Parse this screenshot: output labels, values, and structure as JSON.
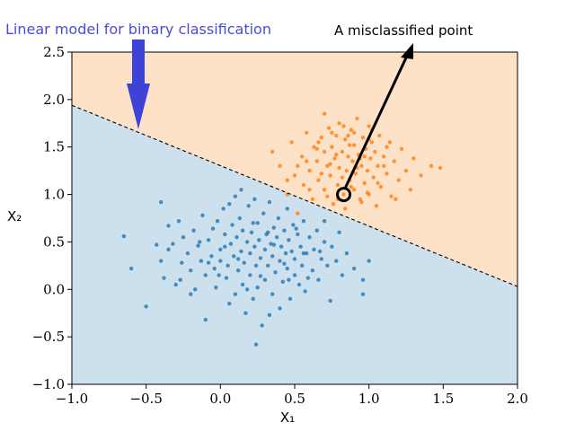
{
  "chart_data": {
    "type": "scatter",
    "title": "",
    "xlabel": "X₁",
    "ylabel": "X₂",
    "xlim": [
      -1.0,
      2.0
    ],
    "ylim": [
      -1.0,
      2.5
    ],
    "xticks": [
      "−1.0",
      "−0.5",
      "0.0",
      "0.5",
      "1.0",
      "1.5",
      "2.0"
    ],
    "yticks": [
      "−1.0",
      "−0.5",
      "0.0",
      "0.5",
      "1.0",
      "1.5",
      "2.0",
      "2.5"
    ],
    "grid": false,
    "decision_boundary": {
      "x": [
        -1.0,
        2.0
      ],
      "y": [
        1.94,
        0.03
      ],
      "style": "dashed"
    },
    "regions": {
      "upper_color": "#fde2c8",
      "lower_color": "#cde0ee"
    },
    "series": [
      {
        "color": "#1f77b4",
        "points": [
          [
            -0.65,
            0.56
          ],
          [
            -0.6,
            0.22
          ],
          [
            -0.5,
            -0.18
          ],
          [
            -0.43,
            0.47
          ],
          [
            -0.4,
            0.3
          ],
          [
            -0.38,
            0.12
          ],
          [
            -0.35,
            0.67
          ],
          [
            -0.32,
            0.48
          ],
          [
            -0.3,
            0.05
          ],
          [
            -0.28,
            0.72
          ],
          [
            -0.26,
            0.28
          ],
          [
            -0.25,
            0.55
          ],
          [
            -0.22,
            0.38
          ],
          [
            -0.2,
            0.2
          ],
          [
            -0.2,
            -0.05
          ],
          [
            -0.18,
            0.62
          ],
          [
            -0.17,
            0.0
          ],
          [
            -0.15,
            0.46
          ],
          [
            -0.13,
            0.3
          ],
          [
            -0.12,
            0.78
          ],
          [
            -0.1,
            0.15
          ],
          [
            -0.1,
            -0.32
          ],
          [
            -0.08,
            0.52
          ],
          [
            -0.06,
            0.35
          ],
          [
            -0.05,
            0.64
          ],
          [
            -0.04,
            0.22
          ],
          [
            -0.03,
            0.02
          ],
          [
            -0.02,
            0.72
          ],
          [
            0.0,
            0.42
          ],
          [
            0.0,
            0.3
          ],
          [
            0.02,
            0.85
          ],
          [
            0.03,
            0.58
          ],
          [
            0.04,
            0.12
          ],
          [
            0.05,
            0.25
          ],
          [
            0.06,
            -0.15
          ],
          [
            0.07,
            0.48
          ],
          [
            0.08,
            0.68
          ],
          [
            0.09,
            0.35
          ],
          [
            0.1,
            0.98
          ],
          [
            0.1,
            -0.05
          ],
          [
            0.11,
            0.55
          ],
          [
            0.12,
            0.2
          ],
          [
            0.13,
            0.75
          ],
          [
            0.14,
            0.4
          ],
          [
            0.15,
            0.05
          ],
          [
            0.15,
            0.62
          ],
          [
            0.16,
            0.28
          ],
          [
            0.17,
            -0.25
          ],
          [
            0.18,
            0.5
          ],
          [
            0.19,
            0.88
          ],
          [
            0.2,
            0.15
          ],
          [
            0.2,
            0.38
          ],
          [
            0.21,
            0.6
          ],
          [
            0.22,
            -0.1
          ],
          [
            0.23,
            0.45
          ],
          [
            0.24,
            0.25
          ],
          [
            0.25,
            0.7
          ],
          [
            0.25,
            0.02
          ],
          [
            0.26,
            0.52
          ],
          [
            0.27,
            0.33
          ],
          [
            0.28,
            -0.38
          ],
          [
            0.29,
            0.8
          ],
          [
            0.3,
            0.42
          ],
          [
            0.3,
            0.1
          ],
          [
            0.31,
            0.58
          ],
          [
            0.32,
            0.25
          ],
          [
            0.33,
            0.92
          ],
          [
            0.34,
            0.48
          ],
          [
            0.35,
            -0.05
          ],
          [
            0.35,
            0.35
          ],
          [
            0.36,
            0.65
          ],
          [
            0.37,
            0.18
          ],
          [
            0.38,
            0.55
          ],
          [
            0.39,
            0.75
          ],
          [
            0.4,
            0.3
          ],
          [
            0.4,
            -0.2
          ],
          [
            0.41,
            0.45
          ],
          [
            0.42,
            0.08
          ],
          [
            0.43,
            0.62
          ],
          [
            0.44,
            0.38
          ],
          [
            0.45,
            0.85
          ],
          [
            0.45,
            0.22
          ],
          [
            0.46,
            0.52
          ],
          [
            0.47,
            -0.1
          ],
          [
            0.48,
            0.4
          ],
          [
            0.49,
            0.68
          ],
          [
            0.5,
            0.15
          ],
          [
            0.5,
            0.32
          ],
          [
            0.52,
            0.58
          ],
          [
            0.53,
            0.05
          ],
          [
            0.54,
            0.45
          ],
          [
            0.55,
            0.25
          ],
          [
            0.56,
            0.72
          ],
          [
            0.57,
            -0.02
          ],
          [
            0.58,
            0.38
          ],
          [
            0.6,
            0.55
          ],
          [
            0.62,
            0.2
          ],
          [
            0.63,
            0.42
          ],
          [
            0.65,
            0.62
          ],
          [
            0.66,
            0.1
          ],
          [
            0.68,
            0.32
          ],
          [
            0.7,
            0.5
          ],
          [
            0.72,
            0.25
          ],
          [
            0.74,
            -0.12
          ],
          [
            0.75,
            0.45
          ],
          [
            0.78,
            0.3
          ],
          [
            0.8,
            0.6
          ],
          [
            0.82,
            0.15
          ],
          [
            0.85,
            0.38
          ],
          [
            0.9,
            0.22
          ],
          [
            0.96,
            0.1
          ],
          [
            1.0,
            0.3
          ],
          [
            -0.35,
            0.42
          ],
          [
            -0.27,
            0.1
          ],
          [
            -0.14,
            0.5
          ],
          [
            -0.01,
            0.15
          ],
          [
            0.12,
            0.32
          ],
          [
            0.22,
            0.7
          ],
          [
            0.27,
            0.14
          ],
          [
            0.36,
            0.47
          ],
          [
            0.43,
            0.27
          ],
          [
            0.51,
            0.64
          ],
          [
            0.59,
            0.12
          ],
          [
            0.67,
            0.4
          ],
          [
            0.24,
            -0.58
          ],
          [
            0.33,
            -0.27
          ],
          [
            0.14,
            1.05
          ],
          [
            0.23,
            0.95
          ],
          [
            -0.4,
            0.92
          ],
          [
            0.7,
            0.72
          ],
          [
            0.06,
            0.9
          ],
          [
            0.96,
            -0.05
          ],
          [
            0.32,
            0.6
          ],
          [
            0.18,
            0.0
          ],
          [
            0.46,
            0.1
          ],
          [
            -0.08,
            0.28
          ],
          [
            0.56,
            0.38
          ],
          [
            0.03,
            0.45
          ]
        ]
      },
      {
        "color": "#ff7f0e",
        "points": [
          [
            0.35,
            1.45
          ],
          [
            0.4,
            1.3
          ],
          [
            0.45,
            1.0
          ],
          [
            0.48,
            1.55
          ],
          [
            0.5,
            1.2
          ],
          [
            0.52,
            0.8
          ],
          [
            0.55,
            1.4
          ],
          [
            0.56,
            1.1
          ],
          [
            0.58,
            1.65
          ],
          [
            0.6,
            1.25
          ],
          [
            0.62,
            0.95
          ],
          [
            0.63,
            1.5
          ],
          [
            0.65,
            1.35
          ],
          [
            0.66,
            1.15
          ],
          [
            0.68,
            1.6
          ],
          [
            0.7,
            1.45
          ],
          [
            0.7,
            1.05
          ],
          [
            0.72,
            1.3
          ],
          [
            0.73,
            1.7
          ],
          [
            0.74,
            1.2
          ],
          [
            0.75,
            1.5
          ],
          [
            0.76,
            0.9
          ],
          [
            0.77,
            1.38
          ],
          [
            0.78,
            1.62
          ],
          [
            0.79,
            1.1
          ],
          [
            0.8,
            1.28
          ],
          [
            0.8,
            1.75
          ],
          [
            0.82,
            1.45
          ],
          [
            0.83,
            1.0
          ],
          [
            0.84,
            1.58
          ],
          [
            0.85,
            1.25
          ],
          [
            0.86,
            1.4
          ],
          [
            0.87,
            1.15
          ],
          [
            0.88,
            1.68
          ],
          [
            0.89,
            1.35
          ],
          [
            0.9,
            1.05
          ],
          [
            0.9,
            1.52
          ],
          [
            0.91,
            1.22
          ],
          [
            0.92,
            1.8
          ],
          [
            0.93,
            1.42
          ],
          [
            0.94,
            0.95
          ],
          [
            0.95,
            1.3
          ],
          [
            0.96,
            1.6
          ],
          [
            0.97,
            1.12
          ],
          [
            0.98,
            1.48
          ],
          [
            0.99,
            1.25
          ],
          [
            1.0,
            1.72
          ],
          [
            1.0,
            1.0
          ],
          [
            1.01,
            1.38
          ],
          [
            1.02,
            1.55
          ],
          [
            1.03,
            1.18
          ],
          [
            1.04,
            1.45
          ],
          [
            1.05,
            0.88
          ],
          [
            1.06,
            1.3
          ],
          [
            1.07,
            1.62
          ],
          [
            1.08,
            1.08
          ],
          [
            1.1,
            1.4
          ],
          [
            1.12,
            1.22
          ],
          [
            1.14,
            1.55
          ],
          [
            1.15,
            0.98
          ],
          [
            1.17,
            1.35
          ],
          [
            1.2,
            1.15
          ],
          [
            1.22,
            1.48
          ],
          [
            1.25,
            1.25
          ],
          [
            1.28,
            1.05
          ],
          [
            1.3,
            1.38
          ],
          [
            1.35,
            1.2
          ],
          [
            1.42,
            1.3
          ],
          [
            1.48,
            1.28
          ],
          [
            0.45,
            1.15
          ],
          [
            0.6,
            1.05
          ],
          [
            0.68,
            1.22
          ],
          [
            0.72,
            0.98
          ],
          [
            0.82,
            1.18
          ],
          [
            0.86,
            1.62
          ],
          [
            0.94,
            1.38
          ],
          [
            1.06,
            1.12
          ],
          [
            1.12,
            1.5
          ],
          [
            0.78,
            1.42
          ],
          [
            0.88,
            1.08
          ],
          [
            0.95,
            0.92
          ],
          [
            1.0,
            1.58
          ],
          [
            0.65,
            1.48
          ],
          [
            0.75,
            1.65
          ],
          [
            0.84,
            0.85
          ],
          [
            0.92,
            1.28
          ],
          [
            1.02,
            1.68
          ],
          [
            1.1,
            1.3
          ],
          [
            0.7,
            1.85
          ],
          [
            0.58,
            1.35
          ],
          [
            0.79,
            0.95
          ],
          [
            0.87,
            1.52
          ],
          [
            1.18,
            0.95
          ],
          [
            0.52,
            1.3
          ],
          [
            0.9,
            1.65
          ],
          [
            0.97,
            1.4
          ],
          [
            0.66,
            1.55
          ],
          [
            0.74,
            1.32
          ],
          [
            0.83,
            1.72
          ],
          [
            0.99,
            1.02
          ]
        ]
      }
    ],
    "annotations": {
      "title_annotation": "Linear model for binary classification",
      "point_annotation": "A misclassified point",
      "misclassified_point": [
        0.83,
        1.0
      ]
    }
  },
  "colors": {
    "arrow_blue": "#3d43d6",
    "annotation_blue": "#4b4bd6"
  }
}
